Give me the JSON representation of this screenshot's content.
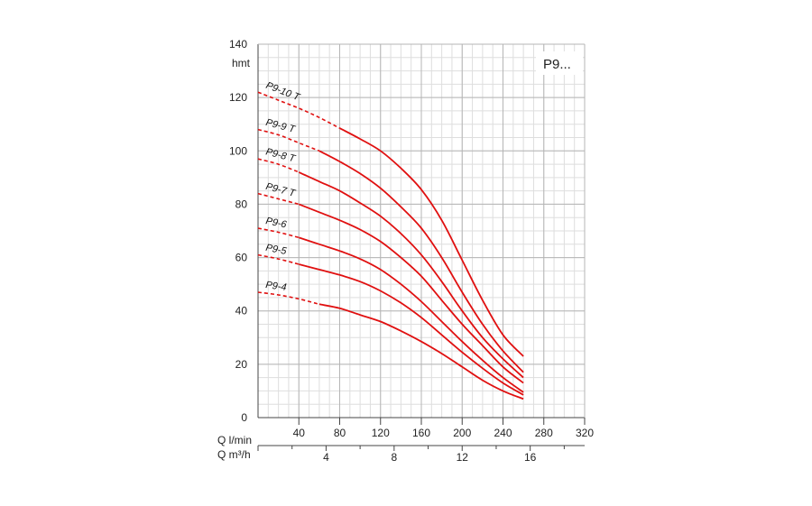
{
  "chart_data": {
    "type": "line",
    "legend_label": "P9...",
    "y_unit": "hmt",
    "ylim": [
      0,
      140
    ],
    "y_ticks": [
      0,
      20,
      40,
      60,
      80,
      100,
      120,
      140
    ],
    "x_axis_primary": {
      "label": "Q l/min",
      "range": [
        0,
        320
      ],
      "ticks": [
        40,
        80,
        120,
        160,
        200,
        240,
        280,
        320
      ]
    },
    "x_axis_secondary": {
      "label": "Q m³/h",
      "range": [
        0,
        19.2
      ],
      "ticks": [
        4,
        8,
        12,
        16
      ]
    },
    "grid": true,
    "colors": {
      "curve": "#e01010",
      "grid": "#b5b5b5",
      "grid_minor": "#dedede",
      "axis": "#444444"
    },
    "series": [
      {
        "name": "P9-10 T",
        "dashed_x": [
          0,
          20,
          40,
          60,
          80
        ],
        "dashed_y": [
          122,
          119,
          116,
          112.5,
          108.5
        ],
        "solid_x": [
          80,
          100,
          120,
          140,
          160,
          180,
          200,
          220,
          240,
          260
        ],
        "solid_y": [
          108.5,
          104.5,
          100,
          93.5,
          85.5,
          74,
          59,
          44,
          31,
          23
        ]
      },
      {
        "name": "P9-9 T",
        "dashed_x": [
          0,
          20,
          40,
          60
        ],
        "dashed_y": [
          108,
          106,
          103,
          100
        ],
        "solid_x": [
          60,
          80,
          100,
          120,
          140,
          160,
          180,
          200,
          220,
          240,
          260
        ],
        "solid_y": [
          100,
          96,
          91.5,
          86,
          79,
          71,
          60,
          47,
          35,
          25,
          17
        ]
      },
      {
        "name": "P9-8 T",
        "dashed_x": [
          0,
          20,
          40
        ],
        "dashed_y": [
          97,
          95,
          92
        ],
        "solid_x": [
          40,
          60,
          80,
          100,
          120,
          140,
          160,
          180,
          200,
          220,
          240,
          260
        ],
        "solid_y": [
          92,
          88.5,
          85,
          80.5,
          75.5,
          69,
          61,
          51,
          40,
          30,
          22,
          15
        ]
      },
      {
        "name": "P9-7 T",
        "dashed_x": [
          0,
          20,
          40
        ],
        "dashed_y": [
          84,
          82,
          80
        ],
        "solid_x": [
          40,
          60,
          80,
          100,
          120,
          140,
          160,
          180,
          200,
          220,
          240,
          260
        ],
        "solid_y": [
          80,
          77,
          74,
          70.5,
          66,
          60,
          53,
          44,
          35,
          27,
          19,
          13
        ]
      },
      {
        "name": "P9-6",
        "dashed_x": [
          0,
          20,
          40
        ],
        "dashed_y": [
          71,
          69.5,
          67.5
        ],
        "solid_x": [
          40,
          60,
          80,
          100,
          120,
          140,
          160,
          180,
          200,
          220,
          240,
          260
        ],
        "solid_y": [
          67.5,
          65,
          62.5,
          59.5,
          55.5,
          50,
          43.5,
          36,
          28.5,
          21.5,
          15,
          9.5
        ]
      },
      {
        "name": "P9-5",
        "dashed_x": [
          0,
          20,
          40
        ],
        "dashed_y": [
          61,
          59.5,
          57.5
        ],
        "solid_x": [
          40,
          60,
          80,
          100,
          120,
          140,
          160,
          180,
          200,
          220,
          240,
          260
        ],
        "solid_y": [
          57.5,
          55.5,
          53.5,
          51,
          47.5,
          43,
          37.5,
          31,
          24.5,
          18.5,
          13,
          8.5
        ]
      },
      {
        "name": "P9-4",
        "dashed_x": [
          0,
          20,
          40,
          60
        ],
        "dashed_y": [
          47,
          46,
          44.5,
          42.5
        ],
        "solid_x": [
          60,
          80,
          100,
          120,
          140,
          160,
          180,
          200,
          220,
          240,
          260
        ],
        "solid_y": [
          42.5,
          41,
          38.5,
          36,
          32.5,
          28.5,
          24,
          19,
          14,
          10,
          7
        ]
      }
    ]
  }
}
